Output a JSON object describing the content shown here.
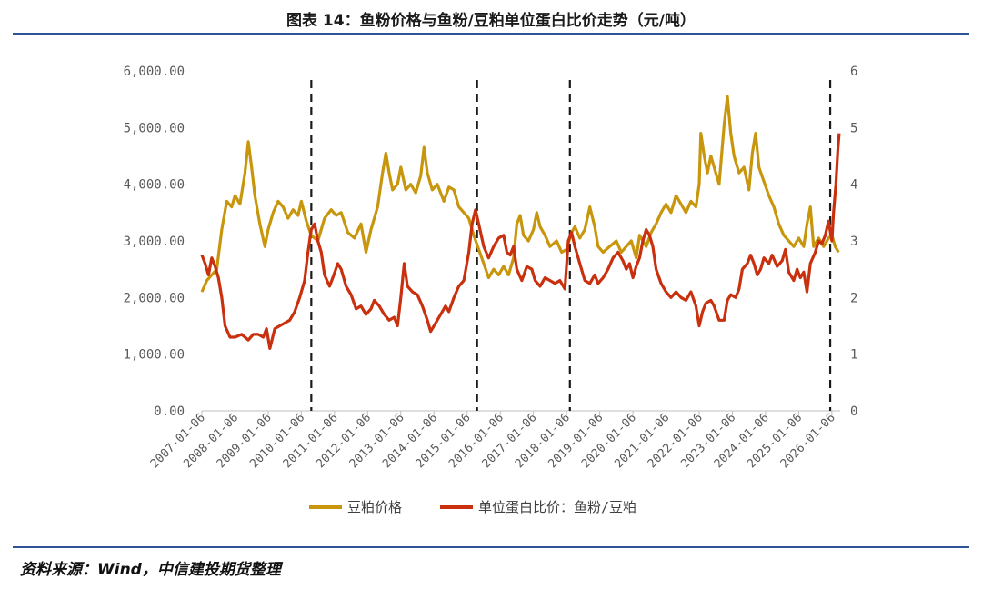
{
  "title": "图表 14：鱼粉价格与鱼粉/豆粕单位蛋白比价走势（元/吨）",
  "source": "资料来源：Wind，中信建投期货整理",
  "chart_data": {
    "type": "line",
    "y_left": {
      "min": 0,
      "max": 6000,
      "ticks": [
        "0.00",
        "1,000.00",
        "2,000.00",
        "3,000.00",
        "4,000.00",
        "5,000.00",
        "6,000.00"
      ]
    },
    "y_right": {
      "min": 0,
      "max": 6,
      "ticks": [
        "0",
        "1",
        "2",
        "3",
        "4",
        "5",
        "6"
      ]
    },
    "x_range": [
      2007.0,
      2026.25
    ],
    "x_ticks": [
      "2007-01-06",
      "2008-01-06",
      "2009-01-06",
      "2010-01-06",
      "2011-01-06",
      "2012-01-06",
      "2013-01-06",
      "2014-01-06",
      "2015-01-06",
      "2016-01-06",
      "2017-01-06",
      "2018-01-06",
      "2019-01-06",
      "2020-01-06",
      "2021-01-06",
      "2022-01-06",
      "2023-01-06",
      "2024-01-06",
      "2025-01-06",
      "2026-01-06"
    ],
    "vlines": [
      2010.3,
      2015.3,
      2018.1,
      2025.95
    ],
    "series": [
      {
        "name": "豆粕价格",
        "axis": "left",
        "color": "#c8960c",
        "points": [
          [
            2007.0,
            2100
          ],
          [
            2007.15,
            2300
          ],
          [
            2007.3,
            2400
          ],
          [
            2007.45,
            2500
          ],
          [
            2007.6,
            3200
          ],
          [
            2007.75,
            3700
          ],
          [
            2007.9,
            3600
          ],
          [
            2008.0,
            3800
          ],
          [
            2008.15,
            3650
          ],
          [
            2008.3,
            4200
          ],
          [
            2008.4,
            4750
          ],
          [
            2008.5,
            4300
          ],
          [
            2008.6,
            3800
          ],
          [
            2008.75,
            3300
          ],
          [
            2008.9,
            2900
          ],
          [
            2009.0,
            3200
          ],
          [
            2009.15,
            3500
          ],
          [
            2009.3,
            3700
          ],
          [
            2009.45,
            3600
          ],
          [
            2009.6,
            3400
          ],
          [
            2009.75,
            3550
          ],
          [
            2009.9,
            3450
          ],
          [
            2010.0,
            3700
          ],
          [
            2010.15,
            3350
          ],
          [
            2010.3,
            3100
          ],
          [
            2010.5,
            3000
          ],
          [
            2010.7,
            3400
          ],
          [
            2010.9,
            3550
          ],
          [
            2011.05,
            3450
          ],
          [
            2011.2,
            3500
          ],
          [
            2011.4,
            3150
          ],
          [
            2011.6,
            3050
          ],
          [
            2011.8,
            3300
          ],
          [
            2011.95,
            2800
          ],
          [
            2012.1,
            3200
          ],
          [
            2012.3,
            3600
          ],
          [
            2012.45,
            4200
          ],
          [
            2012.55,
            4550
          ],
          [
            2012.65,
            4200
          ],
          [
            2012.75,
            3900
          ],
          [
            2012.9,
            4000
          ],
          [
            2013.0,
            4300
          ],
          [
            2013.15,
            3900
          ],
          [
            2013.3,
            4000
          ],
          [
            2013.45,
            3850
          ],
          [
            2013.6,
            4150
          ],
          [
            2013.7,
            4650
          ],
          [
            2013.8,
            4200
          ],
          [
            2013.95,
            3900
          ],
          [
            2014.1,
            4000
          ],
          [
            2014.3,
            3700
          ],
          [
            2014.45,
            3950
          ],
          [
            2014.6,
            3900
          ],
          [
            2014.75,
            3600
          ],
          [
            2014.9,
            3500
          ],
          [
            2015.05,
            3400
          ],
          [
            2015.2,
            3100
          ],
          [
            2015.35,
            2850
          ],
          [
            2015.5,
            2600
          ],
          [
            2015.65,
            2350
          ],
          [
            2015.8,
            2500
          ],
          [
            2015.95,
            2400
          ],
          [
            2016.1,
            2550
          ],
          [
            2016.25,
            2400
          ],
          [
            2016.4,
            2700
          ],
          [
            2016.5,
            3300
          ],
          [
            2016.6,
            3450
          ],
          [
            2016.7,
            3100
          ],
          [
            2016.85,
            3000
          ],
          [
            2017.0,
            3200
          ],
          [
            2017.1,
            3500
          ],
          [
            2017.2,
            3250
          ],
          [
            2017.35,
            3100
          ],
          [
            2017.5,
            2900
          ],
          [
            2017.7,
            3000
          ],
          [
            2017.85,
            2800
          ],
          [
            2018.0,
            2850
          ],
          [
            2018.15,
            3150
          ],
          [
            2018.25,
            3250
          ],
          [
            2018.4,
            3050
          ],
          [
            2018.55,
            3200
          ],
          [
            2018.7,
            3600
          ],
          [
            2018.85,
            3250
          ],
          [
            2018.95,
            2900
          ],
          [
            2019.1,
            2800
          ],
          [
            2019.3,
            2900
          ],
          [
            2019.5,
            3000
          ],
          [
            2019.65,
            2800
          ],
          [
            2019.8,
            2900
          ],
          [
            2019.95,
            3000
          ],
          [
            2020.1,
            2700
          ],
          [
            2020.2,
            3100
          ],
          [
            2020.4,
            2900
          ],
          [
            2020.55,
            3150
          ],
          [
            2020.7,
            3300
          ],
          [
            2020.85,
            3500
          ],
          [
            2021.0,
            3650
          ],
          [
            2021.15,
            3500
          ],
          [
            2021.3,
            3800
          ],
          [
            2021.45,
            3650
          ],
          [
            2021.6,
            3500
          ],
          [
            2021.75,
            3700
          ],
          [
            2021.9,
            3600
          ],
          [
            2022.0,
            4000
          ],
          [
            2022.05,
            4900
          ],
          [
            2022.15,
            4500
          ],
          [
            2022.25,
            4200
          ],
          [
            2022.35,
            4500
          ],
          [
            2022.5,
            4200
          ],
          [
            2022.6,
            4000
          ],
          [
            2022.75,
            5050
          ],
          [
            2022.85,
            5550
          ],
          [
            2022.95,
            4900
          ],
          [
            2023.05,
            4500
          ],
          [
            2023.2,
            4200
          ],
          [
            2023.35,
            4300
          ],
          [
            2023.5,
            3900
          ],
          [
            2023.6,
            4550
          ],
          [
            2023.7,
            4900
          ],
          [
            2023.8,
            4300
          ],
          [
            2023.95,
            4050
          ],
          [
            2024.1,
            3800
          ],
          [
            2024.25,
            3600
          ],
          [
            2024.4,
            3300
          ],
          [
            2024.55,
            3100
          ],
          [
            2024.7,
            3000
          ],
          [
            2024.85,
            2900
          ],
          [
            2025.0,
            3050
          ],
          [
            2025.15,
            2900
          ],
          [
            2025.25,
            3300
          ],
          [
            2025.35,
            3600
          ],
          [
            2025.45,
            2900
          ],
          [
            2025.6,
            3050
          ],
          [
            2025.75,
            2900
          ],
          [
            2025.9,
            3050
          ],
          [
            2026.0,
            3100
          ],
          [
            2026.1,
            2900
          ],
          [
            2026.2,
            2800
          ]
        ]
      },
      {
        "name": "单位蛋白比价：鱼粉/豆粕",
        "axis": "right",
        "color": "#c9300e",
        "points": [
          [
            2007.0,
            2.75
          ],
          [
            2007.1,
            2.6
          ],
          [
            2007.2,
            2.4
          ],
          [
            2007.3,
            2.7
          ],
          [
            2007.4,
            2.55
          ],
          [
            2007.5,
            2.35
          ],
          [
            2007.6,
            2.0
          ],
          [
            2007.7,
            1.5
          ],
          [
            2007.85,
            1.3
          ],
          [
            2008.0,
            1.3
          ],
          [
            2008.2,
            1.35
          ],
          [
            2008.4,
            1.25
          ],
          [
            2008.55,
            1.35
          ],
          [
            2008.7,
            1.35
          ],
          [
            2008.85,
            1.3
          ],
          [
            2008.95,
            1.45
          ],
          [
            2009.05,
            1.1
          ],
          [
            2009.2,
            1.45
          ],
          [
            2009.35,
            1.5
          ],
          [
            2009.5,
            1.55
          ],
          [
            2009.65,
            1.6
          ],
          [
            2009.8,
            1.75
          ],
          [
            2009.95,
            2.0
          ],
          [
            2010.1,
            2.3
          ],
          [
            2010.2,
            2.8
          ],
          [
            2010.3,
            3.2
          ],
          [
            2010.4,
            3.3
          ],
          [
            2010.5,
            3.0
          ],
          [
            2010.6,
            2.8
          ],
          [
            2010.7,
            2.4
          ],
          [
            2010.85,
            2.2
          ],
          [
            2010.95,
            2.35
          ],
          [
            2011.1,
            2.6
          ],
          [
            2011.2,
            2.5
          ],
          [
            2011.35,
            2.2
          ],
          [
            2011.5,
            2.05
          ],
          [
            2011.65,
            1.8
          ],
          [
            2011.8,
            1.85
          ],
          [
            2011.95,
            1.7
          ],
          [
            2012.1,
            1.8
          ],
          [
            2012.2,
            1.95
          ],
          [
            2012.35,
            1.85
          ],
          [
            2012.5,
            1.7
          ],
          [
            2012.65,
            1.6
          ],
          [
            2012.8,
            1.65
          ],
          [
            2012.9,
            1.5
          ],
          [
            2013.0,
            2.0
          ],
          [
            2013.1,
            2.6
          ],
          [
            2013.2,
            2.2
          ],
          [
            2013.35,
            2.1
          ],
          [
            2013.5,
            2.05
          ],
          [
            2013.65,
            1.85
          ],
          [
            2013.8,
            1.6
          ],
          [
            2013.9,
            1.4
          ],
          [
            2014.05,
            1.55
          ],
          [
            2014.2,
            1.7
          ],
          [
            2014.35,
            1.85
          ],
          [
            2014.45,
            1.75
          ],
          [
            2014.6,
            2.0
          ],
          [
            2014.75,
            2.2
          ],
          [
            2014.9,
            2.3
          ],
          [
            2015.05,
            2.8
          ],
          [
            2015.15,
            3.3
          ],
          [
            2015.25,
            3.55
          ],
          [
            2015.35,
            3.3
          ],
          [
            2015.5,
            2.9
          ],
          [
            2015.65,
            2.7
          ],
          [
            2015.8,
            2.9
          ],
          [
            2015.95,
            3.05
          ],
          [
            2016.1,
            3.1
          ],
          [
            2016.2,
            2.8
          ],
          [
            2016.3,
            2.75
          ],
          [
            2016.4,
            2.9
          ],
          [
            2016.5,
            2.5
          ],
          [
            2016.65,
            2.3
          ],
          [
            2016.8,
            2.55
          ],
          [
            2016.95,
            2.5
          ],
          [
            2017.05,
            2.3
          ],
          [
            2017.2,
            2.2
          ],
          [
            2017.35,
            2.35
          ],
          [
            2017.5,
            2.3
          ],
          [
            2017.65,
            2.25
          ],
          [
            2017.8,
            2.3
          ],
          [
            2017.95,
            2.15
          ],
          [
            2018.05,
            3.0
          ],
          [
            2018.15,
            3.15
          ],
          [
            2018.25,
            2.9
          ],
          [
            2018.4,
            2.6
          ],
          [
            2018.55,
            2.3
          ],
          [
            2018.7,
            2.25
          ],
          [
            2018.85,
            2.4
          ],
          [
            2018.95,
            2.25
          ],
          [
            2019.1,
            2.35
          ],
          [
            2019.25,
            2.5
          ],
          [
            2019.4,
            2.7
          ],
          [
            2019.55,
            2.8
          ],
          [
            2019.7,
            2.65
          ],
          [
            2019.8,
            2.5
          ],
          [
            2019.9,
            2.6
          ],
          [
            2020.0,
            2.35
          ],
          [
            2020.1,
            2.55
          ],
          [
            2020.2,
            2.7
          ],
          [
            2020.3,
            3.0
          ],
          [
            2020.4,
            3.2
          ],
          [
            2020.5,
            3.1
          ],
          [
            2020.6,
            2.9
          ],
          [
            2020.7,
            2.5
          ],
          [
            2020.85,
            2.25
          ],
          [
            2021.0,
            2.1
          ],
          [
            2021.15,
            2.0
          ],
          [
            2021.3,
            2.1
          ],
          [
            2021.45,
            2.0
          ],
          [
            2021.6,
            1.95
          ],
          [
            2021.75,
            2.1
          ],
          [
            2021.9,
            1.85
          ],
          [
            2022.0,
            1.5
          ],
          [
            2022.1,
            1.75
          ],
          [
            2022.2,
            1.9
          ],
          [
            2022.35,
            1.95
          ],
          [
            2022.45,
            1.85
          ],
          [
            2022.6,
            1.6
          ],
          [
            2022.75,
            1.6
          ],
          [
            2022.85,
            1.95
          ],
          [
            2022.95,
            2.05
          ],
          [
            2023.1,
            2.0
          ],
          [
            2023.2,
            2.15
          ],
          [
            2023.3,
            2.5
          ],
          [
            2023.45,
            2.6
          ],
          [
            2023.55,
            2.75
          ],
          [
            2023.65,
            2.6
          ],
          [
            2023.75,
            2.4
          ],
          [
            2023.85,
            2.5
          ],
          [
            2023.95,
            2.7
          ],
          [
            2024.1,
            2.6
          ],
          [
            2024.2,
            2.75
          ],
          [
            2024.35,
            2.55
          ],
          [
            2024.5,
            2.65
          ],
          [
            2024.6,
            2.85
          ],
          [
            2024.7,
            2.45
          ],
          [
            2024.85,
            2.3
          ],
          [
            2024.95,
            2.5
          ],
          [
            2025.05,
            2.35
          ],
          [
            2025.15,
            2.45
          ],
          [
            2025.25,
            2.1
          ],
          [
            2025.35,
            2.6
          ],
          [
            2025.5,
            2.8
          ],
          [
            2025.6,
            3.0
          ],
          [
            2025.7,
            2.95
          ],
          [
            2025.8,
            3.1
          ],
          [
            2025.9,
            3.35
          ],
          [
            2026.0,
            3.0
          ],
          [
            2026.05,
            3.5
          ],
          [
            2026.12,
            4.0
          ],
          [
            2026.18,
            4.6
          ],
          [
            2026.22,
            4.9
          ]
        ]
      }
    ]
  }
}
